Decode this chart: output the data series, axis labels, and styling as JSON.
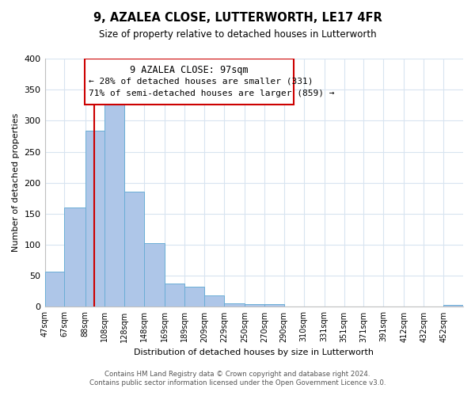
{
  "title": "9, AZALEA CLOSE, LUTTERWORTH, LE17 4FR",
  "subtitle": "Size of property relative to detached houses in Lutterworth",
  "xlabel": "Distribution of detached houses by size in Lutterworth",
  "ylabel": "Number of detached properties",
  "bin_edges": [
    47,
    67,
    88,
    108,
    128,
    148,
    169,
    189,
    209,
    229,
    250,
    270,
    290,
    310,
    331,
    351,
    371,
    391,
    412,
    432,
    452,
    472
  ],
  "bin_labels": [
    "47sqm",
    "67sqm",
    "88sqm",
    "108sqm",
    "128sqm",
    "148sqm",
    "169sqm",
    "189sqm",
    "209sqm",
    "229sqm",
    "250sqm",
    "270sqm",
    "290sqm",
    "310sqm",
    "331sqm",
    "351sqm",
    "371sqm",
    "391sqm",
    "412sqm",
    "432sqm",
    "452sqm"
  ],
  "bar_heights": [
    57,
    160,
    284,
    328,
    185,
    103,
    38,
    32,
    19,
    6,
    5,
    4,
    0,
    0,
    0,
    0,
    0,
    0,
    0,
    0,
    3
  ],
  "bar_color": "#aec6e8",
  "bar_edge_color": "#6baed6",
  "property_line_x": 97,
  "ylim": [
    0,
    400
  ],
  "yticks": [
    0,
    50,
    100,
    150,
    200,
    250,
    300,
    350,
    400
  ],
  "annotation_title": "9 AZALEA CLOSE: 97sqm",
  "annotation_line1": "← 28% of detached houses are smaller (331)",
  "annotation_line2": "71% of semi-detached houses are larger (859) →",
  "footer_line1": "Contains HM Land Registry data © Crown copyright and database right 2024.",
  "footer_line2": "Contains public sector information licensed under the Open Government Licence v3.0.",
  "grid_color": "#d8e4f0",
  "line_color": "#cc0000",
  "box_edge_color": "#cc0000",
  "background_color": "#ffffff"
}
